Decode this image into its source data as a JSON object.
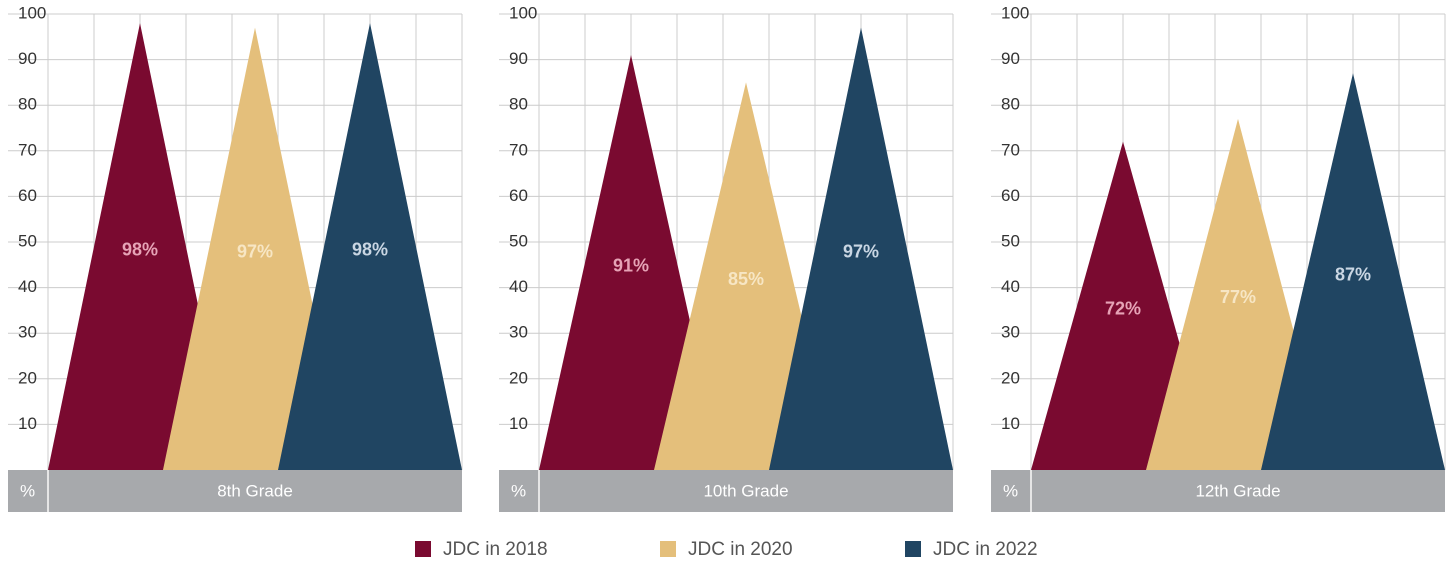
{
  "chart_data": {
    "type": "peak",
    "categories": [
      "8th Grade",
      "10th Grade",
      "12th Grade"
    ],
    "ylabel": "%",
    "ylim": [
      0,
      100
    ],
    "yticks": [
      10,
      20,
      30,
      40,
      50,
      60,
      70,
      80,
      90,
      100
    ],
    "grid": true,
    "legend": "bottom",
    "series": [
      {
        "name": "JDC in 2018",
        "color": "#7a0a30",
        "values": [
          98,
          91,
          72
        ],
        "value_labels": [
          "98%",
          "91%",
          "72%"
        ]
      },
      {
        "name": "JDC in 2020",
        "color": "#e4bf7b",
        "values": [
          97,
          85,
          77
        ],
        "value_labels": [
          "97%",
          "85%",
          "77%"
        ]
      },
      {
        "name": "JDC in 2022",
        "color": "#204562",
        "values": [
          98,
          97,
          87
        ],
        "value_labels": [
          "98%",
          "97%",
          "87%"
        ]
      }
    ]
  }
}
